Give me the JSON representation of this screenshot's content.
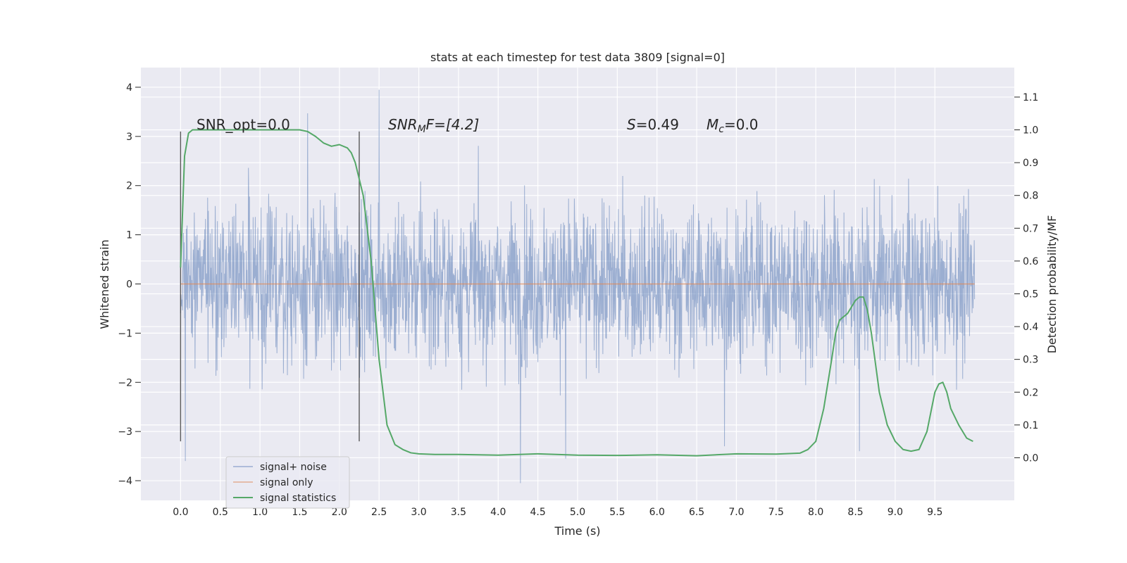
{
  "chart_data": {
    "type": "line",
    "title": "stats at each timestep for test data 3809 [signal=0]",
    "xlabel": "Time (s)",
    "ylabel": "Whitened strain",
    "ylabel_right": "Detection probability/MF",
    "xlim": [
      -0.5,
      10.5
    ],
    "ylim": [
      -4.4,
      4.4
    ],
    "ylim_right": [
      -0.13,
      1.19
    ],
    "x_ticks": [
      "0.0",
      "0.5",
      "1.0",
      "1.5",
      "2.0",
      "2.5",
      "3.0",
      "3.5",
      "4.0",
      "4.5",
      "5.0",
      "5.5",
      "6.0",
      "6.5",
      "7.0",
      "7.5",
      "8.0",
      "8.5",
      "9.0",
      "9.5"
    ],
    "y_ticks": [
      "−4",
      "−3",
      "−2",
      "−1",
      "0",
      "1",
      "2",
      "3",
      "4"
    ],
    "y_ticks_right": [
      "0.0",
      "0.1",
      "0.2",
      "0.3",
      "0.4",
      "0.5",
      "0.6",
      "0.7",
      "0.8",
      "0.9",
      "1.0",
      "1.1"
    ],
    "grid": true,
    "legend_position": "lower-left",
    "annotations": {
      "snr_opt": "SNR_opt=0.0",
      "snr_mf_main": "SNR",
      "snr_mf_sub": "M",
      "snr_mf_rest": "F=[4.2]",
      "s_label": "S",
      "s_value": "=0.49",
      "mc_label": "M",
      "mc_sub": "c",
      "mc_value": "=0.0"
    },
    "vlines_x": [
      0.0,
      2.25
    ],
    "vlines_range": [
      -3.2,
      3.1
    ],
    "series": [
      {
        "name": "signal+ noise",
        "axis": "left",
        "color": "#4c72b0",
        "alpha": 0.5,
        "x_range": [
          0.0,
          10.0
        ],
        "envelope_typical": 1.3,
        "extreme_peaks": [
          {
            "x": 0.06,
            "y": -3.6
          },
          {
            "x": 1.6,
            "y": 3.47
          },
          {
            "x": 2.5,
            "y": 3.95
          },
          {
            "x": 4.28,
            "y": -4.05
          },
          {
            "x": 4.85,
            "y": -3.55
          },
          {
            "x": 8.55,
            "y": -3.4
          },
          {
            "x": 6.85,
            "y": -3.3
          }
        ]
      },
      {
        "name": "signal only",
        "axis": "left",
        "color": "#dd8452",
        "values_constant": 0.0,
        "x_range": [
          0.0,
          10.0
        ]
      },
      {
        "name": "signal statistics",
        "axis": "right",
        "color": "#55a868",
        "x": [
          0.0,
          0.05,
          0.1,
          0.15,
          0.2,
          0.3,
          0.5,
          0.8,
          1.0,
          1.3,
          1.5,
          1.6,
          1.7,
          1.8,
          1.9,
          2.0,
          2.1,
          2.15,
          2.2,
          2.3,
          2.4,
          2.5,
          2.6,
          2.7,
          2.8,
          2.9,
          3.0,
          3.2,
          3.5,
          4.0,
          4.5,
          5.0,
          5.5,
          6.0,
          6.5,
          7.0,
          7.5,
          7.8,
          7.9,
          8.0,
          8.05,
          8.1,
          8.2,
          8.25,
          8.3,
          8.4,
          8.45,
          8.5,
          8.55,
          8.6,
          8.65,
          8.7,
          8.8,
          8.9,
          9.0,
          9.1,
          9.2,
          9.3,
          9.4,
          9.5,
          9.55,
          9.6,
          9.65,
          9.7,
          9.8,
          9.9,
          9.98
        ],
        "values": [
          0.58,
          0.92,
          0.99,
          1.0,
          1.0,
          1.0,
          1.0,
          1.0,
          1.0,
          1.0,
          1.0,
          0.995,
          0.98,
          0.96,
          0.95,
          0.955,
          0.945,
          0.93,
          0.9,
          0.8,
          0.6,
          0.3,
          0.1,
          0.04,
          0.025,
          0.015,
          0.012,
          0.01,
          0.01,
          0.008,
          0.012,
          0.008,
          0.007,
          0.009,
          0.006,
          0.012,
          0.011,
          0.014,
          0.025,
          0.05,
          0.1,
          0.15,
          0.3,
          0.38,
          0.42,
          0.44,
          0.46,
          0.48,
          0.49,
          0.49,
          0.45,
          0.38,
          0.2,
          0.1,
          0.05,
          0.025,
          0.02,
          0.025,
          0.08,
          0.2,
          0.225,
          0.23,
          0.2,
          0.15,
          0.1,
          0.06,
          0.05
        ]
      }
    ]
  }
}
